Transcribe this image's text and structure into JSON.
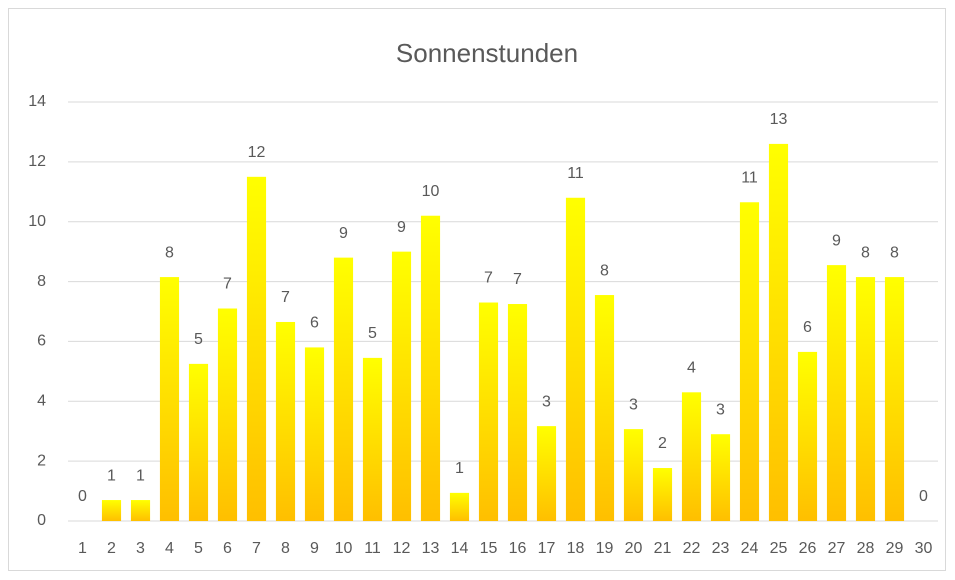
{
  "chart_data": {
    "type": "bar",
    "title": "Sonnenstunden",
    "categories": [
      "1",
      "2",
      "3",
      "4",
      "5",
      "6",
      "7",
      "8",
      "9",
      "10",
      "11",
      "12",
      "13",
      "14",
      "15",
      "16",
      "17",
      "18",
      "19",
      "20",
      "21",
      "22",
      "23",
      "24",
      "25",
      "26",
      "27",
      "28",
      "29",
      "30"
    ],
    "values": [
      0,
      0.7,
      0.7,
      8.15,
      5.25,
      7.1,
      11.5,
      6.65,
      5.8,
      8.8,
      5.45,
      9.0,
      10.2,
      0.94,
      7.3,
      7.25,
      3.17,
      10.8,
      7.55,
      3.07,
      1.77,
      4.3,
      2.9,
      10.65,
      12.6,
      5.65,
      8.55,
      8.15,
      8.15,
      0
    ],
    "value_labels": [
      "0",
      "1",
      "1",
      "8",
      "5",
      "7",
      "12",
      "7",
      "6",
      "9",
      "5",
      "9",
      "10",
      "1",
      "7",
      "7",
      "3",
      "11",
      "8",
      "3",
      "2",
      "4",
      "3",
      "11",
      "13",
      "6",
      "9",
      "8",
      "8",
      "0"
    ],
    "color_gradient": {
      "top": "#ffff00",
      "bottom": "#ffbf00"
    },
    "ylim": [
      0,
      14
    ],
    "yticks": [
      0,
      2,
      4,
      6,
      8,
      10,
      12,
      14
    ],
    "grid": true
  }
}
